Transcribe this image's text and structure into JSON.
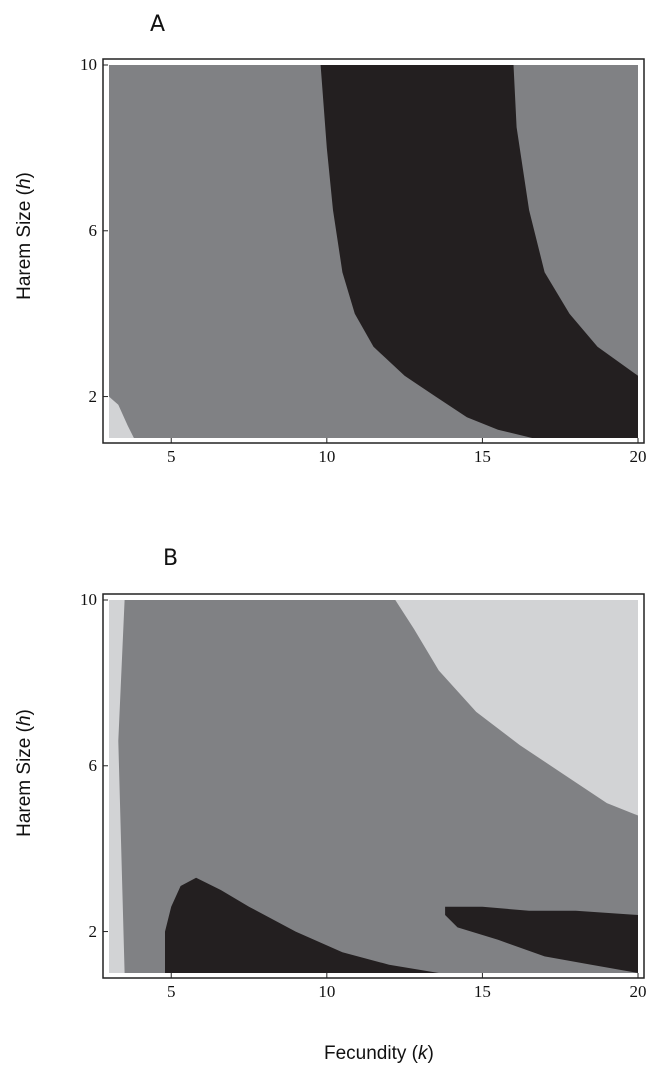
{
  "chart_data": [
    {
      "type": "heatmap",
      "panel": "A",
      "xlabel": "",
      "ylabel_text": "Harem Size (",
      "ylabel_var": "h",
      "ylabel_end": ")",
      "xlim": [
        3,
        20
      ],
      "ylim": [
        1,
        10
      ],
      "xticks": [
        "5",
        "10",
        "15",
        "20"
      ],
      "xtick_values": [
        5,
        10,
        15,
        20
      ],
      "yticks": [
        "2",
        "6",
        "10"
      ],
      "ytick_values": [
        2,
        6,
        10
      ],
      "colors": {
        "light": "#d2d3d5",
        "mid": "#808184",
        "dark": "#231f20"
      },
      "regions": [
        {
          "shade": "mid",
          "label": "background",
          "polygon": [
            [
              3,
              1
            ],
            [
              20,
              1
            ],
            [
              20,
              10
            ],
            [
              3,
              10
            ]
          ]
        },
        {
          "shade": "light",
          "label": "corner",
          "polygon": [
            [
              3,
              1
            ],
            [
              3.8,
              1
            ],
            [
              3.6,
              1.3
            ],
            [
              3.3,
              1.8
            ],
            [
              3,
              2
            ]
          ]
        },
        {
          "shade": "dark",
          "label": "band",
          "polygon": [
            [
              9.8,
              10
            ],
            [
              16,
              10
            ],
            [
              16.1,
              8.5
            ],
            [
              16.5,
              6.5
            ],
            [
              17,
              5
            ],
            [
              17.8,
              4
            ],
            [
              18.7,
              3.2
            ],
            [
              20,
              2.5
            ],
            [
              20,
              1
            ],
            [
              16.6,
              1
            ],
            [
              15.5,
              1.2
            ],
            [
              14.5,
              1.5
            ],
            [
              13.5,
              2
            ],
            [
              12.5,
              2.5
            ],
            [
              11.5,
              3.2
            ],
            [
              10.9,
              4
            ],
            [
              10.5,
              5
            ],
            [
              10.2,
              6.5
            ],
            [
              10.0,
              8
            ],
            [
              9.8,
              10
            ]
          ]
        }
      ]
    },
    {
      "type": "heatmap",
      "panel": "B",
      "xlabel_text": "Fecundity (",
      "xlabel_var": "k",
      "xlabel_end": ")",
      "ylabel_text": "Harem Size (",
      "ylabel_var": "h",
      "ylabel_end": ")",
      "xlim": [
        3,
        20
      ],
      "ylim": [
        1,
        10
      ],
      "xticks": [
        "5",
        "10",
        "15",
        "20"
      ],
      "xtick_values": [
        5,
        10,
        15,
        20
      ],
      "yticks": [
        "2",
        "6",
        "10"
      ],
      "ytick_values": [
        2,
        6,
        10
      ],
      "colors": {
        "light": "#d2d3d5",
        "mid": "#808184",
        "dark": "#231f20"
      },
      "regions": [
        {
          "shade": "light",
          "label": "background",
          "polygon": [
            [
              3,
              1
            ],
            [
              20,
              1
            ],
            [
              20,
              10
            ],
            [
              3,
              10
            ]
          ]
        },
        {
          "shade": "mid",
          "label": "main",
          "polygon": [
            [
              3.5,
              10
            ],
            [
              12.2,
              10
            ],
            [
              12.8,
              9.3
            ],
            [
              13.6,
              8.3
            ],
            [
              14.8,
              7.3
            ],
            [
              16.2,
              6.5
            ],
            [
              17.6,
              5.8
            ],
            [
              19,
              5.1
            ],
            [
              20,
              4.8
            ],
            [
              20,
              1
            ],
            [
              3.5,
              1
            ],
            [
              3.3,
              6.6
            ],
            [
              3.5,
              10
            ]
          ]
        },
        {
          "shade": "dark",
          "label": "left-band",
          "polygon": [
            [
              4.8,
              1
            ],
            [
              13.6,
              1
            ],
            [
              12,
              1.2
            ],
            [
              10.5,
              1.5
            ],
            [
              9,
              2
            ],
            [
              7.5,
              2.6
            ],
            [
              6.6,
              3
            ],
            [
              5.8,
              3.3
            ],
            [
              5.3,
              3.1
            ],
            [
              5.0,
              2.6
            ],
            [
              4.8,
              2
            ],
            [
              4.8,
              1
            ]
          ]
        },
        {
          "shade": "dark",
          "label": "right-band",
          "polygon": [
            [
              13.8,
              2.6
            ],
            [
              15,
              2.6
            ],
            [
              16.5,
              2.5
            ],
            [
              18,
              2.5
            ],
            [
              20,
              2.4
            ],
            [
              20,
              1
            ],
            [
              18.5,
              1.2
            ],
            [
              17,
              1.4
            ],
            [
              15.5,
              1.8
            ],
            [
              14.2,
              2.1
            ],
            [
              13.8,
              2.4
            ]
          ]
        }
      ]
    }
  ]
}
